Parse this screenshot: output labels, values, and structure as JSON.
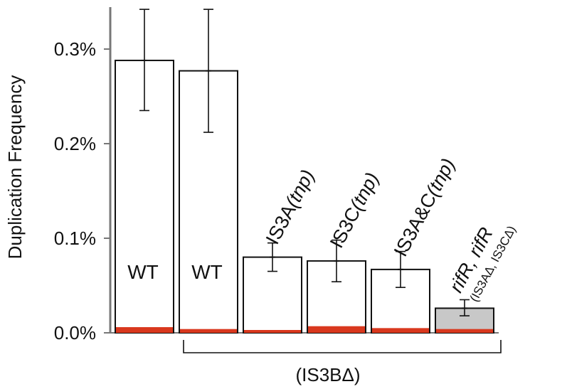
{
  "chart_data": {
    "type": "bar",
    "ylabel": "Duplication Frequency",
    "ylim": [
      0,
      0.36
    ],
    "yticks": [
      {
        "value": 0.0,
        "label": "0.0%"
      },
      {
        "value": 0.1,
        "label": "0.1%"
      },
      {
        "value": 0.2,
        "label": "0.2%"
      },
      {
        "value": 0.3,
        "label": "0.3%"
      }
    ],
    "bars": [
      {
        "label": "WT",
        "label_pos": "inside",
        "value": 0.288,
        "err_low": 0.235,
        "err_high": 0.342,
        "base": 0.006,
        "fill": "#ffffff"
      },
      {
        "label": "WT",
        "label_pos": "inside",
        "value": 0.277,
        "err_low": 0.212,
        "err_high": 0.342,
        "base": 0.004,
        "fill": "#ffffff"
      },
      {
        "label": "IS3A(tnp)",
        "label_pos": "above",
        "value": 0.08,
        "err_low": 0.065,
        "err_high": 0.095,
        "base": 0.003,
        "fill": "#ffffff"
      },
      {
        "label": "IS3C(tnp)",
        "label_pos": "above",
        "value": 0.076,
        "err_low": 0.054,
        "err_high": 0.098,
        "base": 0.007,
        "fill": "#ffffff"
      },
      {
        "label": "IS3A&C(tnp)",
        "label_pos": "above",
        "value": 0.067,
        "err_low": 0.048,
        "err_high": 0.086,
        "base": 0.005,
        "fill": "#ffffff"
      },
      {
        "label": "rifR, rifR",
        "sublabel": "(IS3AΔ, IS3CΔ)",
        "label_pos": "above",
        "value": 0.026,
        "err_low": 0.018,
        "err_high": 0.035,
        "base": 0.004,
        "fill": "#c8c8c8"
      }
    ],
    "base_color": "#d9381e",
    "bracket_label": "(IS3BΔ)",
    "bracket_from_bar": 1,
    "bracket_to_bar": 5
  }
}
